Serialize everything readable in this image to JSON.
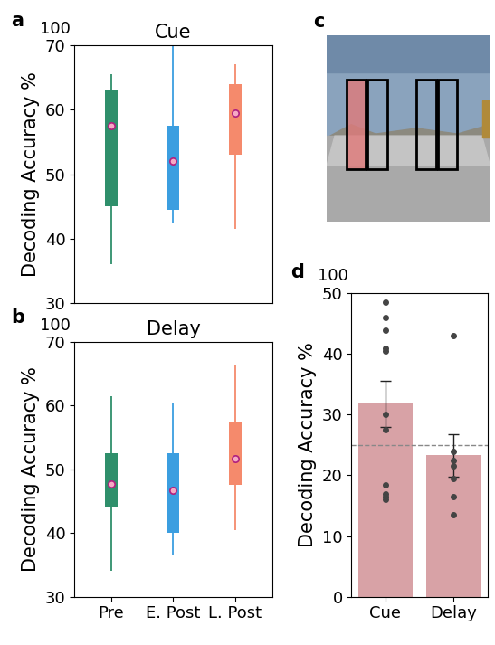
{
  "chart_data": [
    {
      "type": "box",
      "panel_label": "a",
      "title": "Cue",
      "y_label": "Decoding Accuracy %",
      "annotations": [
        "100"
      ],
      "categories": [
        null,
        null,
        null
      ],
      "tick_labels": "y",
      "colors": [
        "#2f8f6b",
        "#3b9ee0",
        "#f58a6c"
      ],
      "whisker_low": [
        36,
        42.5,
        41.5
      ],
      "q1": [
        45,
        44.5,
        53
      ],
      "median": [
        57.5,
        52,
        59.5
      ],
      "q3": [
        63,
        57.5,
        64
      ],
      "whisker_high": [
        65.5,
        70,
        67
      ],
      "ylim": [
        30,
        70
      ],
      "yticks": [
        30,
        40,
        50,
        60,
        70
      ]
    },
    {
      "type": "box",
      "panel_label": "b",
      "title": "Delay",
      "y_label": "Decoding Accuracy %",
      "annotations": [
        "100"
      ],
      "categories": [
        "Pre",
        "E. Post",
        "L. Post"
      ],
      "colors": [
        "#2f8f6b",
        "#3b9ee0",
        "#f58a6c"
      ],
      "whisker_low": [
        34,
        36.5,
        40.5
      ],
      "q1": [
        44,
        40,
        47.5
      ],
      "median": [
        47.7,
        46.7,
        51.7
      ],
      "q3": [
        52.5,
        52.5,
        57.5
      ],
      "whisker_high": [
        61.5,
        60.5,
        66.5
      ],
      "ylim": [
        30,
        70
      ],
      "yticks": [
        30,
        40,
        50,
        60,
        70
      ]
    },
    {
      "type": "image",
      "panel_label": "c"
    },
    {
      "type": "bar",
      "panel_label": "d",
      "y_label": "Decoding Accuracy %",
      "annotations": [
        "100"
      ],
      "categories": [
        "Cue",
        "Delay"
      ],
      "values": [
        31.8,
        23.3
      ],
      "errors": [
        3.8,
        3.5
      ],
      "points": [
        [
          48.5,
          46,
          44,
          41,
          40.5,
          30,
          27.5,
          18.5,
          17,
          16.5,
          16
        ],
        [
          43,
          24,
          22.5,
          21.5,
          19.5,
          16.5,
          13.5
        ]
      ],
      "chance": 25,
      "color": "#d8a2a6",
      "ylim": [
        0,
        50
      ],
      "yticks": [
        0,
        10,
        20,
        30,
        40,
        50
      ]
    }
  ]
}
